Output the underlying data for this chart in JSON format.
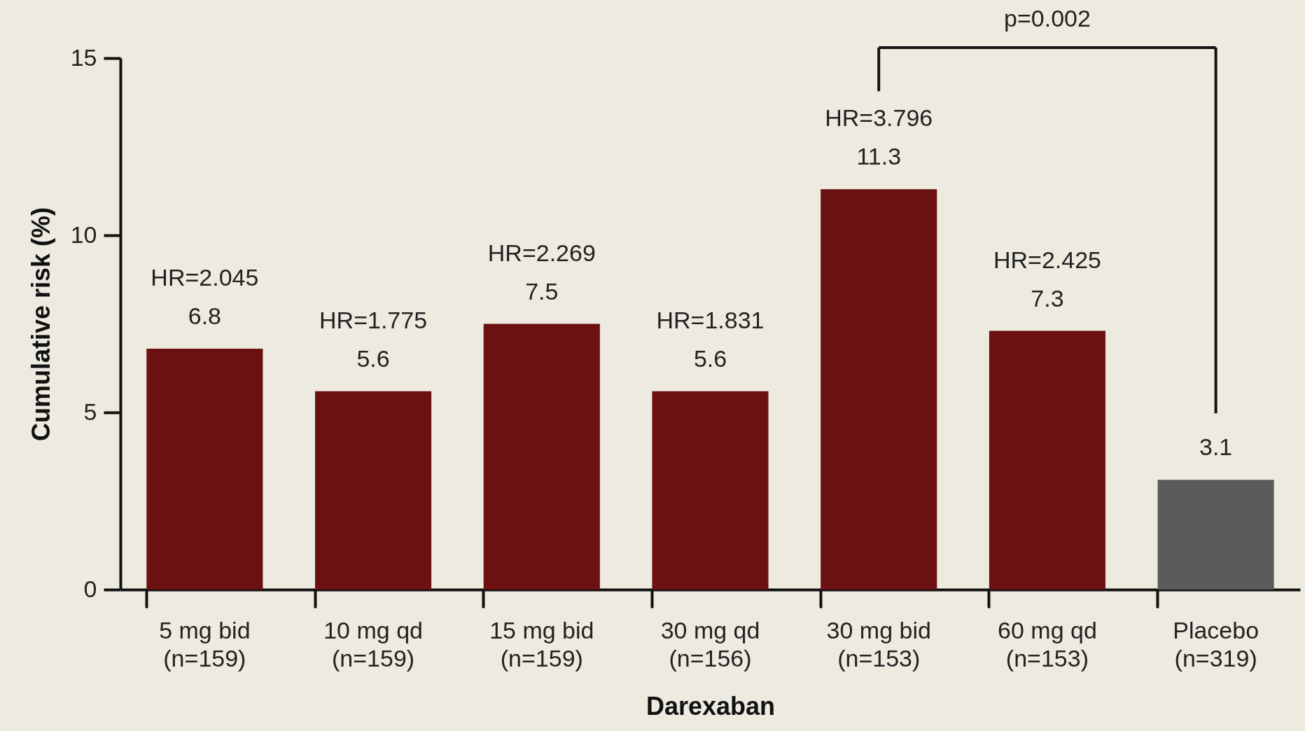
{
  "chart_data": {
    "type": "bar",
    "xlabel": "Darexaban",
    "ylabel": "Cumulative risk (%)",
    "categories": [
      "5 mg bid\n(n=159)",
      "10 mg qd\n(n=159)",
      "15 mg bid\n(n=159)",
      "30 mg qd\n(n=156)",
      "30 mg bid\n(n=153)",
      "60 mg qd\n(n=153)",
      "Placebo\n(n=319)"
    ],
    "values": [
      6.8,
      5.6,
      7.5,
      5.6,
      11.3,
      7.3,
      3.1
    ],
    "colors": [
      "#6b1111",
      "#6b1111",
      "#6b1111",
      "#6b1111",
      "#6b1111",
      "#6b1111",
      "#5b5b5b"
    ],
    "ylim": [
      0,
      15
    ],
    "yticks": [
      0,
      5,
      10,
      15
    ],
    "grid": false,
    "data_labels": true,
    "annotations": [
      {
        "text": "HR=2.045",
        "x": "5 mg bid\n(n=159)",
        "y": 6.8
      },
      {
        "text": "HR=1.775",
        "x": "10 mg qd\n(n=159)",
        "y": 5.6
      },
      {
        "text": "HR=2.269",
        "x": "15 mg bid\n(n=159)",
        "y": 7.5
      },
      {
        "text": "HR=1.831",
        "x": "30 mg qd\n(n=156)",
        "y": 5.6
      },
      {
        "text": "HR=3.796",
        "x": "30 mg bid\n(n=153)",
        "y": 11.3
      },
      {
        "text": "HR=2.425",
        "x": "60 mg qd\n(n=153)",
        "y": 7.3
      },
      "p=0.002"
    ]
  }
}
